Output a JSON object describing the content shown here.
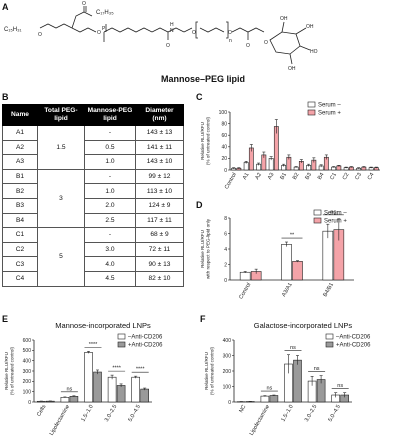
{
  "panels": {
    "A": "A",
    "B": "B",
    "C": "C",
    "D": "D",
    "E": "E",
    "F": "F"
  },
  "structure": {
    "caption": "Mannose–PEG lipid",
    "labels": [
      "C₁₅H₃₁",
      "C₁₇H₃₅",
      "O",
      "O",
      "O",
      "P",
      "H",
      "N",
      "O",
      "O",
      "O",
      "O",
      "O",
      "n",
      "OH",
      "OH",
      "HO",
      "OH"
    ]
  },
  "table": {
    "headers": [
      "Name",
      "Total PEG-lipid",
      "Mannose-PEG lipid",
      "Diameter (nm)"
    ],
    "groups": [
      {
        "total": "1.5",
        "rows": [
          [
            "A1",
            "-",
            "143 ± 13"
          ],
          [
            "A2",
            "0.5",
            "141 ± 11"
          ],
          [
            "A3",
            "1.0",
            "143 ± 10"
          ]
        ]
      },
      {
        "total": "3",
        "rows": [
          [
            "B1",
            "-",
            "99 ± 12"
          ],
          [
            "B2",
            "1.0",
            "113 ± 10"
          ],
          [
            "B3",
            "2.0",
            "124 ± 9"
          ],
          [
            "B4",
            "2.5",
            "117 ± 11"
          ]
        ]
      },
      {
        "total": "5",
        "rows": [
          [
            "C1",
            "-",
            "68 ± 9"
          ],
          [
            "C2",
            "3.0",
            "72 ± 11"
          ],
          [
            "C3",
            "4.0",
            "90 ± 13"
          ],
          [
            "C4",
            "4.5",
            "82 ± 10"
          ]
        ]
      }
    ]
  },
  "chart_data": [
    {
      "id": "C",
      "type": "bar",
      "categories": [
        "Control",
        "A1",
        "A2",
        "A3",
        "B1",
        "B2",
        "B3",
        "B4",
        "C1",
        "C2",
        "C3",
        "C4"
      ],
      "series": [
        {
          "name": "Serum –",
          "color": "#ffffff",
          "values": [
            3,
            13,
            10,
            20,
            8,
            5,
            8,
            7,
            5,
            4,
            3,
            4
          ],
          "errors": [
            1,
            2,
            2,
            3,
            2,
            1,
            2,
            2,
            1,
            1,
            1,
            1
          ]
        },
        {
          "name": "Serum +",
          "color": "#f4a3a8",
          "values": [
            3,
            38,
            26,
            75,
            22,
            15,
            17,
            22,
            7,
            5,
            5,
            4
          ],
          "errors": [
            1,
            6,
            5,
            12,
            4,
            3,
            4,
            4,
            1,
            1,
            1,
            1
          ]
        }
      ],
      "ylabel": "Relative RLU/RFU (% of untreated control)",
      "ylim": [
        0,
        100
      ],
      "yticks": [
        0,
        20,
        40,
        60,
        80,
        100
      ],
      "legend": "top-right"
    },
    {
      "id": "D",
      "type": "bar",
      "categories": [
        "Control",
        "A3/A1",
        "B4/B1"
      ],
      "series": [
        {
          "name": "Serum –",
          "color": "#ffffff",
          "values": [
            1,
            4.6,
            6.3
          ],
          "errors": [
            0.1,
            0.3,
            0.9
          ]
        },
        {
          "name": "Serum +",
          "color": "#f4a3a8",
          "values": [
            1.1,
            2.4,
            6.5
          ],
          "errors": [
            0.3,
            0.1,
            1.4
          ]
        }
      ],
      "ylabel": "Relative RLU/RFU with respect to PEG-lipid only",
      "ylim": [
        0,
        8
      ],
      "yticks": [
        0,
        2,
        4,
        6,
        8
      ],
      "annotations": [
        {
          "between": "A3/A1",
          "text": "**"
        },
        {
          "between": "B4/B1",
          "text": "ns"
        }
      ],
      "legend": "top-right"
    },
    {
      "id": "E",
      "type": "bar",
      "title": "Mannose-incorporated LNPs",
      "categories": [
        "Cells",
        "Lipofectamine",
        "1.5–1.0",
        "3.0–2.5",
        "5.0–4.5"
      ],
      "series": [
        {
          "name": "–Anti-CD206",
          "color": "#ffffff",
          "values": [
            7,
            45,
            480,
            240,
            240
          ],
          "errors": [
            2,
            4,
            10,
            20,
            10
          ]
        },
        {
          "name": "+Anti-CD206",
          "color": "#9a9a9a",
          "values": [
            8,
            55,
            290,
            160,
            125
          ],
          "errors": [
            2,
            5,
            20,
            15,
            10
          ]
        }
      ],
      "ylabel": "Relative RLU/RFU (% of untreated control)",
      "ylim": [
        0,
        600
      ],
      "yticks": [
        0,
        100,
        200,
        300,
        400,
        500,
        600
      ],
      "annotations": [
        {
          "between": "Lipofectamine",
          "text": "ns"
        },
        {
          "between": "1.5–1.0",
          "text": "****"
        },
        {
          "between": "3.0–2.5",
          "text": "****"
        },
        {
          "between": "5.0–4.5",
          "text": "****"
        }
      ],
      "legend": "top-right"
    },
    {
      "id": "F",
      "type": "bar",
      "title": "Galactose-incorporated LNPs",
      "categories": [
        "NC",
        "Lipofectamine",
        "1.5–1.0",
        "3.0–2.5",
        "5.0–4.5"
      ],
      "series": [
        {
          "name": "–Anti-CD206",
          "color": "#ffffff",
          "values": [
            2,
            38,
            245,
            135,
            45
          ],
          "errors": [
            1,
            3,
            60,
            30,
            15
          ]
        },
        {
          "name": "+Anti-CD206",
          "color": "#9a9a9a",
          "values": [
            3,
            42,
            270,
            145,
            45
          ],
          "errors": [
            1,
            3,
            30,
            25,
            15
          ]
        }
      ],
      "ylabel": "Relative RLU/RFU (% of untreated control)",
      "ylim": [
        0,
        400
      ],
      "yticks": [
        0,
        100,
        200,
        300,
        400
      ],
      "annotations": [
        {
          "between": "Lipofectamine",
          "text": "ns"
        },
        {
          "between": "1.5–1.0",
          "text": "ns"
        },
        {
          "between": "3.0–2.5",
          "text": "ns"
        },
        {
          "between": "5.0–4.5",
          "text": "ns"
        }
      ],
      "legend": "top-right"
    }
  ]
}
